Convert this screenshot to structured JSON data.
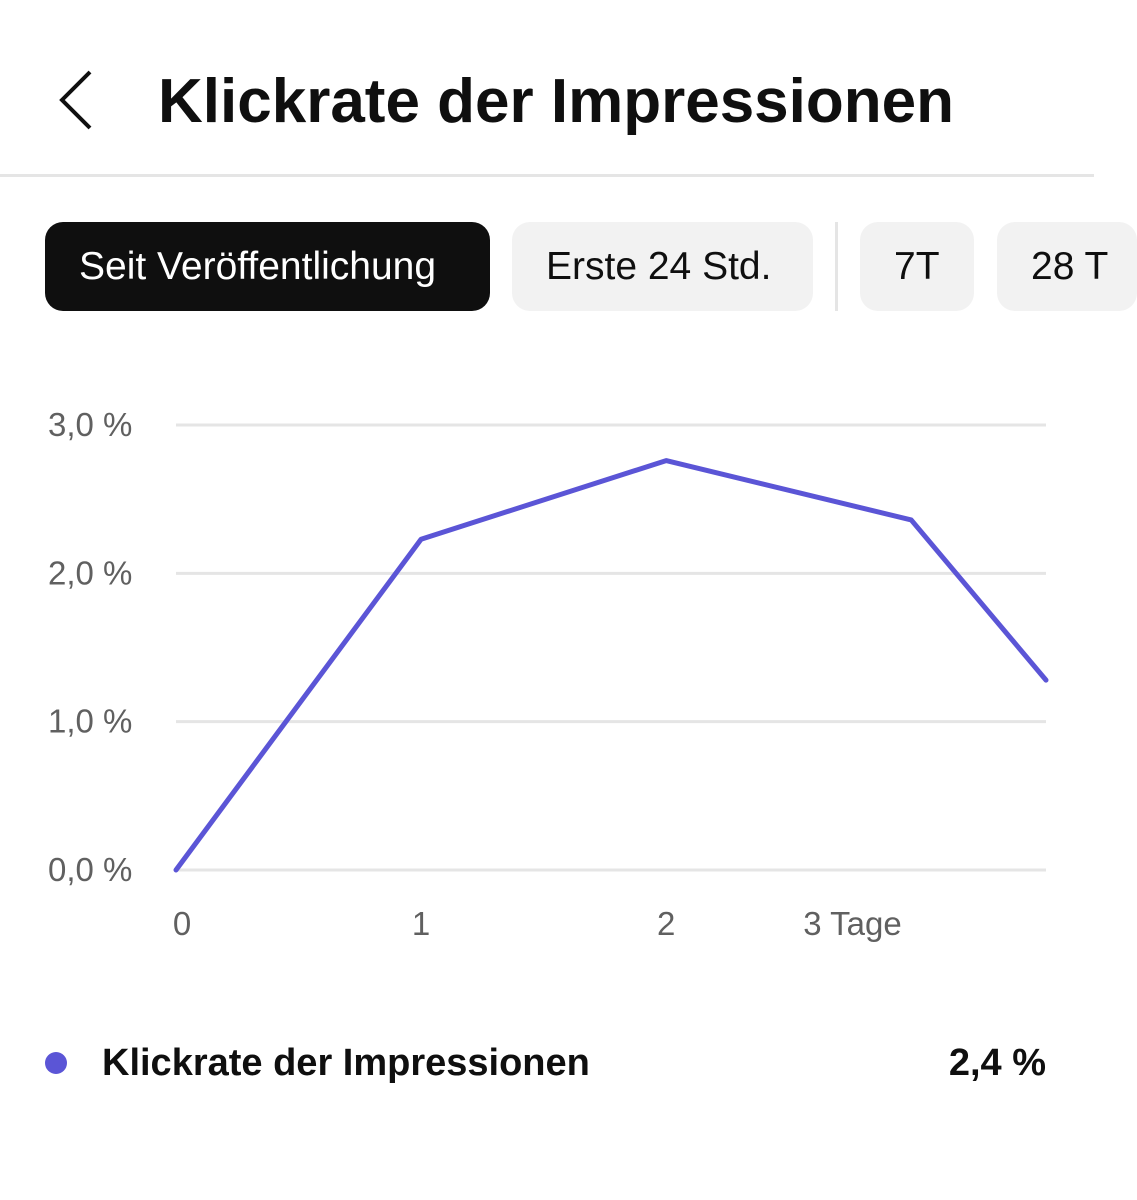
{
  "header": {
    "back_icon": "chevron-left-icon",
    "title": "Klickrate der Impressionen"
  },
  "filters": {
    "chips": [
      {
        "label": "Seit Veröffentlichung",
        "selected": true
      },
      {
        "label": "Erste 24 Std.",
        "selected": false
      },
      {
        "label": "7T",
        "selected": false
      },
      {
        "label": "28 T",
        "selected": false
      }
    ]
  },
  "colors": {
    "accent": "#5b55d6",
    "selected_chip_bg": "#0f0f0f",
    "chip_bg": "#f2f2f2",
    "grid": "#e5e5e5",
    "tick_text": "#606060"
  },
  "chart_data": {
    "type": "line",
    "x": [
      0,
      1,
      2,
      3,
      3.55
    ],
    "series": [
      {
        "name": "Klickrate der Impressionen",
        "values": [
          0.0,
          2.23,
          2.76,
          2.36,
          1.28
        ]
      }
    ],
    "y_ticks": [
      "0,0 %",
      "1,0 %",
      "2,0 %",
      "3,0 %"
    ],
    "x_ticks": [
      "0",
      "1",
      "2",
      "3 Tage"
    ],
    "xlim": [
      0,
      3.55
    ],
    "ylim": [
      0,
      3.0
    ],
    "grid": true
  },
  "legend": {
    "label": "Klickrate der Impressionen",
    "value": "2,4 %"
  }
}
